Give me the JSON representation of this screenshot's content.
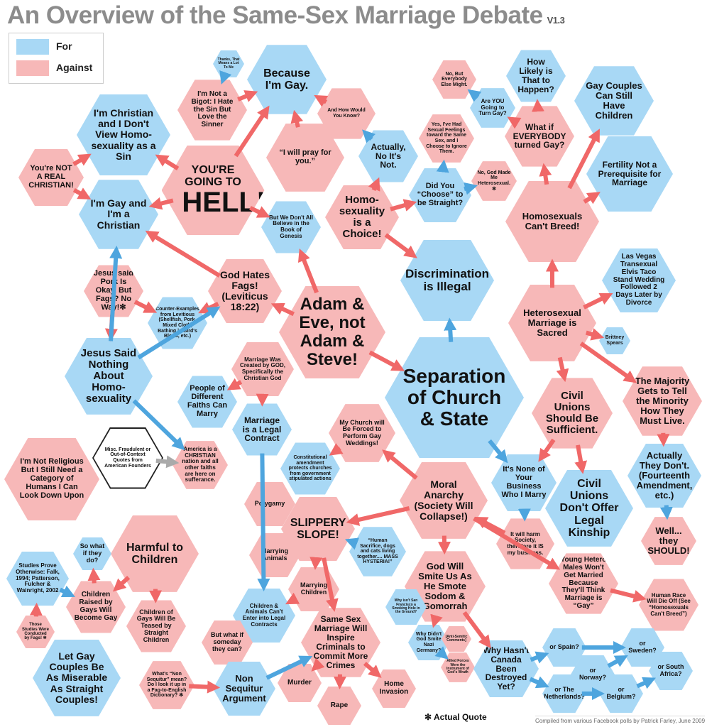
{
  "title": "An Overview of the Same-Sex Marriage Debate",
  "version": "V1.3",
  "legend": [
    {
      "label": "For",
      "color": "#a8d8f5"
    },
    {
      "label": "Against",
      "color": "#f7b8b8"
    }
  ],
  "colors": {
    "for": "#a8d8f5",
    "against": "#f7b8b8",
    "for_arrow": "#4ea5de",
    "against_arrow": "#f06868",
    "neutral": "#ffffff",
    "grey_arrow": "#aaaaaa"
  },
  "footnote": "✻ Actual Quote",
  "credit": "Compiled from various Facebook polls by Patrick Farley, June 2009",
  "nodes": [
    {
      "id": "thanks",
      "side": "for",
      "text": "Thanks, That Means a Lot To Me"
    },
    {
      "id": "because",
      "side": "for",
      "text": "Because I'm Gay."
    },
    {
      "id": "notbigot",
      "side": "against",
      "text": "I'm Not a Bigot: I Hate the Sin But Love the Sinner"
    },
    {
      "id": "christian",
      "side": "for",
      "text": "I'm Christian and I Don't View Homo-sexuality as a Sin"
    },
    {
      "id": "notreal",
      "side": "against",
      "text": "You're NOT A REAL CHRISTIAN!"
    },
    {
      "id": "hell",
      "side": "against",
      "text": "YOU'RE GOING TO",
      "big": "HELL!"
    },
    {
      "id": "pray",
      "side": "against",
      "text": "“I will pray for you.”"
    },
    {
      "id": "howknow",
      "side": "against",
      "text": "And How Would You Know?"
    },
    {
      "id": "actually",
      "side": "for",
      "text": "Actually, No It's Not."
    },
    {
      "id": "evmight",
      "side": "against",
      "text": "No, But Everybody Else Might."
    },
    {
      "id": "areyou",
      "side": "for",
      "text": "Are YOU Going to Turn Gay?"
    },
    {
      "id": "howlikely",
      "side": "for",
      "text": "How Likely is That to Happen?"
    },
    {
      "id": "gaychildren",
      "side": "for",
      "text": "Gay Couples Can Still Have Children"
    },
    {
      "id": "whatif",
      "side": "against",
      "text": "What if EVERYBODY turned Gay?"
    },
    {
      "id": "feelings",
      "side": "against",
      "text": "Yes, I've Had Sexual Feelings toward the Same Sex, and I Choose to Ignore Them."
    },
    {
      "id": "godmade",
      "side": "against",
      "text": "No, God Made Me Heterosexual. ✻"
    },
    {
      "id": "choose",
      "side": "for",
      "text": "Did You “Choose” to be Straight?"
    },
    {
      "id": "fertility",
      "side": "for",
      "text": "Fertility Not a Prerequisite for Marriage"
    },
    {
      "id": "gayxtian",
      "side": "for",
      "text": "I'm Gay and I'm a Christian"
    },
    {
      "id": "genesis",
      "side": "for",
      "text": "But We Don't All Believe in the Book of Genesis"
    },
    {
      "id": "choice",
      "side": "against",
      "text": "Homo-sexuality is a Choice!"
    },
    {
      "id": "cantbreed",
      "side": "against",
      "text": "Homosexuals Can't Breed!"
    },
    {
      "id": "discrim",
      "side": "for",
      "text": "Discrimination is Illegal"
    },
    {
      "id": "vegas",
      "side": "for",
      "text": "Las Vegas Transexual Elvis Taco Stand Wedding Followed 2 Days Later by Divorce"
    },
    {
      "id": "pork",
      "side": "against",
      "text": "Jesus said Pork Is Okay, But Fags? No Way!✻"
    },
    {
      "id": "godhates",
      "side": "against",
      "text": "God Hates Fags! (Leviticus 18:22)"
    },
    {
      "id": "counter",
      "side": "for",
      "text": "Counter-Examples from Levitious (Shellfish, Pork, Mixed Cloth, Bathing in Bird's Blood, etc.)"
    },
    {
      "id": "adam",
      "side": "against",
      "text": "Adam & Eve, not Adam & Steve!"
    },
    {
      "id": "sacred",
      "side": "against",
      "text": "Heterosexual Marriage is Sacred"
    },
    {
      "id": "brittney",
      "side": "for",
      "text": "Brittney Spears"
    },
    {
      "id": "jesus",
      "side": "for",
      "text": "Jesus Said Nothing About Homo-sexuality"
    },
    {
      "id": "created",
      "side": "against",
      "text": "Marriage Was Created by GOD, Specifically the Christian God"
    },
    {
      "id": "separation",
      "side": "for",
      "text": "Separation of Church & State"
    },
    {
      "id": "majority",
      "side": "against",
      "text": "The Majority Gets to Tell the Minority How They Must Live."
    },
    {
      "id": "civilsuff",
      "side": "against",
      "text": "Civil Unions Should Be Sufficient."
    },
    {
      "id": "faiths",
      "side": "for",
      "text": "People of Different Faiths Can Marry"
    },
    {
      "id": "legal",
      "side": "for",
      "text": "Marriage is a Legal Contract"
    },
    {
      "id": "mychurch",
      "side": "against",
      "text": "My Church will Be Forced to Perform Gay Weddings!"
    },
    {
      "id": "misc",
      "side": "neutral",
      "text": "Misc. Fraudulent or Out-of-Context Quotes from American Founders"
    },
    {
      "id": "america",
      "side": "against",
      "text": "America is a CHRISTIAN nation and all other faiths are here on sufferance."
    },
    {
      "id": "const",
      "side": "for",
      "text": "Constitutional amendment protects churches from government stipulated actions"
    },
    {
      "id": "notreligious",
      "side": "against",
      "text": "I'm Not Religious But I Still Need a Category of Humans I Can Look Down Upon"
    },
    {
      "id": "actuallydont",
      "side": "for",
      "text": "Actually They Don't. (Fourteenth Amendment, etc.)"
    },
    {
      "id": "nonebiz",
      "side": "for",
      "text": "It's None of Your Business Who I Marry"
    },
    {
      "id": "civildont",
      "side": "for",
      "text": "Civil Unions Don't Offer Legal Kinship"
    },
    {
      "id": "moral",
      "side": "against",
      "text": "Moral Anarchy (Society Will Collapse!)"
    },
    {
      "id": "polygamy",
      "side": "against",
      "text": "Polygamy"
    },
    {
      "id": "slippery",
      "side": "against",
      "text": "SLIPPERY SLOPE!"
    },
    {
      "id": "human",
      "side": "for",
      "text": "“Human Sacrifice, dogs and cats living together.... MASS HYSTERIA!”"
    },
    {
      "id": "well",
      "side": "against",
      "text": "Well... they SHOULD!"
    },
    {
      "id": "harmsociety",
      "side": "against",
      "text": "It will harm Society, therefore it IS my business."
    },
    {
      "id": "harmful",
      "side": "against",
      "text": "Harmful to Children"
    },
    {
      "id": "whatifdo",
      "side": "for",
      "text": "So what if they do?"
    },
    {
      "id": "animals",
      "side": "against",
      "text": "Marrying Animals"
    },
    {
      "id": "smite",
      "side": "against",
      "text": "God Will Smite Us As He Smote Sodom & Gomorrah"
    },
    {
      "id": "mchildren",
      "side": "against",
      "text": "Marrying Children"
    },
    {
      "id": "studies",
      "side": "for",
      "text": "Studies Prove Otherwise: Falk, 1994; Patterson, Fulcher & Wainright, 2002"
    },
    {
      "id": "raised",
      "side": "against",
      "text": "Children Raised by Gays Will Become Gay"
    },
    {
      "id": "teased",
      "side": "against",
      "text": "Children of Gays Will Be Teased by Straight Children"
    },
    {
      "id": "cantenter",
      "side": "for",
      "text": "Children & Animals Can't Enter into Legal Contracts"
    },
    {
      "id": "youngm",
      "side": "against",
      "text": "Young Hetero Males Won't Get Married Because They'll Think Marriage is “Gay”"
    },
    {
      "id": "extinct",
      "side": "against",
      "text": "Human Race Will Die Off (See “Homosexuals Can't Breed”)"
    },
    {
      "id": "sf",
      "side": "for",
      "text": "Why isn't San Francisco a Smoking Hole in the Ground?"
    },
    {
      "id": "conducted",
      "side": "against",
      "text": "Those Studies Were Conducted by Fags! ✻"
    },
    {
      "id": "nazi",
      "side": "for",
      "text": "Why Didn't God Smite Nazi Germany?"
    },
    {
      "id": "antisemitic",
      "side": "against",
      "text": "[Anti-Semitic Comments]"
    },
    {
      "id": "allied",
      "side": "against",
      "text": "Allied Forces Were the Instrument of God's Wrath"
    },
    {
      "id": "criminals",
      "side": "against",
      "text": "Same Sex Marriage Will Inspire Criminals to Commit More Crimes"
    },
    {
      "id": "someday",
      "side": "against",
      "text": "But what if someday they can?"
    },
    {
      "id": "canada",
      "side": "for",
      "text": "Why Hasn't Canada Been Destroyed Yet?"
    },
    {
      "id": "spain",
      "side": "for",
      "text": "or Spain?"
    },
    {
      "id": "sweden",
      "side": "for",
      "text": "or Sweden?"
    },
    {
      "id": "norway",
      "side": "for",
      "text": "or Norway?"
    },
    {
      "id": "netherlands",
      "side": "for",
      "text": "or The Netherlands?"
    },
    {
      "id": "belgium",
      "side": "for",
      "text": "or Belgium?"
    },
    {
      "id": "southafrica",
      "side": "for",
      "text": "or South Africa?"
    },
    {
      "id": "letgay",
      "side": "for",
      "text": "Let Gay Couples Be As Miserable As Straight Couples!"
    },
    {
      "id": "sequitur",
      "side": "against",
      "text": "What's “Non Sequitur” mean? Do I look it up in a Fag-to-English Dictionary? ✻"
    },
    {
      "id": "nonseq",
      "side": "for",
      "text": "Non Sequitur Argument"
    },
    {
      "id": "murder",
      "side": "against",
      "text": "Murder"
    },
    {
      "id": "rape",
      "side": "against",
      "text": "Rape"
    },
    {
      "id": "invasion",
      "side": "against",
      "text": "Home Invasion"
    }
  ],
  "edges": [
    [
      "hell",
      "because"
    ],
    [
      "hell",
      "christian"
    ],
    [
      "hell",
      "gayxtian"
    ],
    [
      "hell",
      "genesis"
    ],
    [
      "notreal",
      "christian"
    ],
    [
      "notreal",
      "gayxtian"
    ],
    [
      "notbigot",
      "because"
    ],
    [
      "thanks",
      "notbigot"
    ],
    [
      "pray",
      "because"
    ],
    [
      "howknow",
      "because"
    ],
    [
      "choice",
      "actually"
    ],
    [
      "actually",
      "howknow"
    ],
    [
      "choice",
      "choose"
    ],
    [
      "choose",
      "feelings"
    ],
    [
      "choose",
      "godmade"
    ],
    [
      "choice",
      "discrim"
    ],
    [
      "whatif",
      "areyou"
    ],
    [
      "areyou",
      "evmight"
    ],
    [
      "whatif",
      "howlikely"
    ],
    [
      "cantbreed",
      "whatif"
    ],
    [
      "cantbreed",
      "gaychildren"
    ],
    [
      "cantbreed",
      "fertility"
    ],
    [
      "sacred",
      "cantbreed"
    ],
    [
      "sacred",
      "vegas"
    ],
    [
      "sacred",
      "brittney"
    ],
    [
      "sacred",
      "majority"
    ],
    [
      "sacred",
      "civilsuff"
    ],
    [
      "godhates",
      "gayxtian"
    ],
    [
      "godhates",
      "counter"
    ],
    [
      "pork",
      "counter"
    ],
    [
      "pork",
      "jesus"
    ],
    [
      "jesus",
      "gayxtian"
    ],
    [
      "jesus",
      "godhates"
    ],
    [
      "adam",
      "godhates"
    ],
    [
      "adam",
      "genesis"
    ],
    [
      "adam",
      "separation"
    ],
    [
      "separation",
      "discrim"
    ],
    [
      "separation",
      "nonebiz"
    ],
    [
      "created",
      "faiths"
    ],
    [
      "created",
      "legal"
    ],
    [
      "jesus",
      "america"
    ],
    [
      "misc",
      "america"
    ],
    [
      "legal",
      "cantenter"
    ],
    [
      "mychurch",
      "const"
    ],
    [
      "moral",
      "mychurch"
    ],
    [
      "moral",
      "slippery"
    ],
    [
      "moral",
      "smite"
    ],
    [
      "moral",
      "youngm"
    ],
    [
      "human",
      "slippery"
    ],
    [
      "nonebiz",
      "harmsociety"
    ],
    [
      "harmsociety",
      "moral"
    ],
    [
      "majority",
      "actuallydont"
    ],
    [
      "actuallydont",
      "well"
    ],
    [
      "civilsuff",
      "nonebiz"
    ],
    [
      "civilsuff",
      "civildont"
    ],
    [
      "youngm",
      "extinct"
    ],
    [
      "slippery",
      "polygamy"
    ],
    [
      "slippery",
      "animals"
    ],
    [
      "slippery",
      "mchildren"
    ],
    [
      "slippery",
      "criminals"
    ],
    [
      "mchildren",
      "cantenter"
    ],
    [
      "cantenter",
      "someday"
    ],
    [
      "harmful",
      "raised"
    ],
    [
      "harmful",
      "teased"
    ],
    [
      "raised",
      "whatifdo"
    ],
    [
      "studies",
      "raised"
    ],
    [
      "conducted",
      "studies"
    ],
    [
      "smite",
      "sf"
    ],
    [
      "smite",
      "nazi"
    ],
    [
      "nazi",
      "antisemitic"
    ],
    [
      "nazi",
      "allied"
    ],
    [
      "smite",
      "canada"
    ],
    [
      "canada",
      "spain"
    ],
    [
      "canada",
      "netherlands"
    ],
    [
      "spain",
      "sweden"
    ],
    [
      "spain",
      "norway"
    ],
    [
      "norway",
      "sweden"
    ],
    [
      "norway",
      "netherlands"
    ],
    [
      "norway",
      "belgium"
    ],
    [
      "netherlands",
      "belgium"
    ],
    [
      "sweden",
      "southafrica"
    ],
    [
      "belgium",
      "southafrica"
    ],
    [
      "criminals",
      "murder"
    ],
    [
      "criminals",
      "rape"
    ],
    [
      "criminals",
      "invasion"
    ],
    [
      "sequitur",
      "nonseq"
    ],
    [
      "nonseq",
      "criminals"
    ]
  ]
}
